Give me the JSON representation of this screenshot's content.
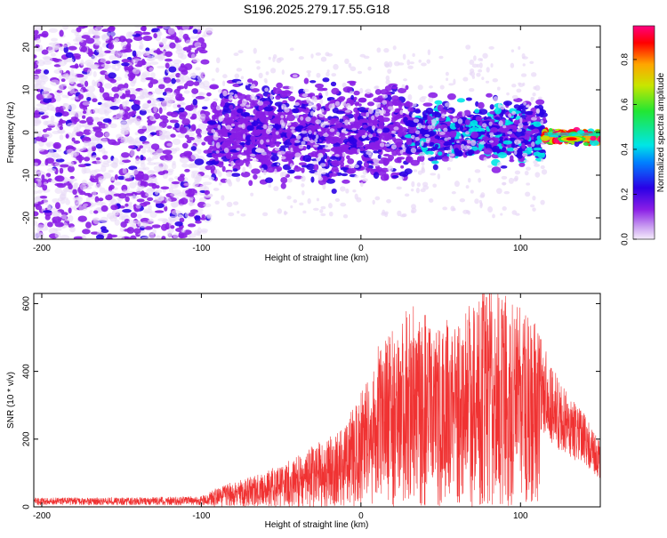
{
  "title": "S196.2025.279.17.55.G18",
  "chart_data": [
    {
      "type": "heatmap",
      "name": "spectrogram",
      "xlabel": "Height of straight line (km)",
      "ylabel": "Frequency (Hz)",
      "xlim": [
        -205,
        150
      ],
      "ylim": [
        -25,
        25
      ],
      "xticks": [
        -200,
        -100,
        0,
        100
      ],
      "yticks": [
        -20,
        -10,
        0,
        10,
        20
      ],
      "colorbar": {
        "label": "Normalized spectral amplitude",
        "range": [
          0,
          0.95
        ],
        "ticks": [
          0.0,
          0.2,
          0.4,
          0.6,
          0.8
        ],
        "colors": [
          "#e8d8f6",
          "#8a1ee6",
          "#2a00e6",
          "#00e6e6",
          "#22e633",
          "#c8e600",
          "#ffa500",
          "#ff0000",
          "#ff0080"
        ]
      },
      "description_regions": [
        {
          "x_range": [
            -205,
            -95
          ],
          "f_range": [
            -25,
            25
          ],
          "amplitude": 0.05
        },
        {
          "x_range": [
            -95,
            30
          ],
          "f_range": [
            -8,
            8
          ],
          "amplitude": 0.2
        },
        {
          "x_range": [
            30,
            115
          ],
          "f_range": [
            -5,
            5
          ],
          "amplitude": 0.3
        },
        {
          "x_range": [
            115,
            150
          ],
          "f_range": [
            -2,
            0
          ],
          "amplitude": 0.9
        }
      ]
    },
    {
      "type": "line",
      "name": "snr",
      "xlabel": "Height of straight line (km)",
      "ylabel": "SNR (10 * v/v)",
      "xlim": [
        -205,
        150
      ],
      "ylim": [
        0,
        630
      ],
      "xticks": [
        -200,
        -100,
        0,
        100
      ],
      "yticks": [
        0,
        200,
        400,
        600
      ],
      "color": "#f03232",
      "series": [
        {
          "name": "SNR envelope",
          "x": [
            -205,
            -150,
            -100,
            -90,
            -80,
            -70,
            -60,
            -50,
            -40,
            -30,
            -20,
            -10,
            0,
            10,
            20,
            30,
            40,
            50,
            60,
            70,
            80,
            90,
            100,
            110,
            120,
            130,
            140,
            150
          ],
          "y": [
            25,
            25,
            30,
            45,
            60,
            70,
            85,
            100,
            120,
            145,
            165,
            200,
            270,
            380,
            420,
            480,
            460,
            440,
            450,
            500,
            520,
            510,
            470,
            430,
            330,
            270,
            220,
            150
          ]
        }
      ]
    }
  ]
}
